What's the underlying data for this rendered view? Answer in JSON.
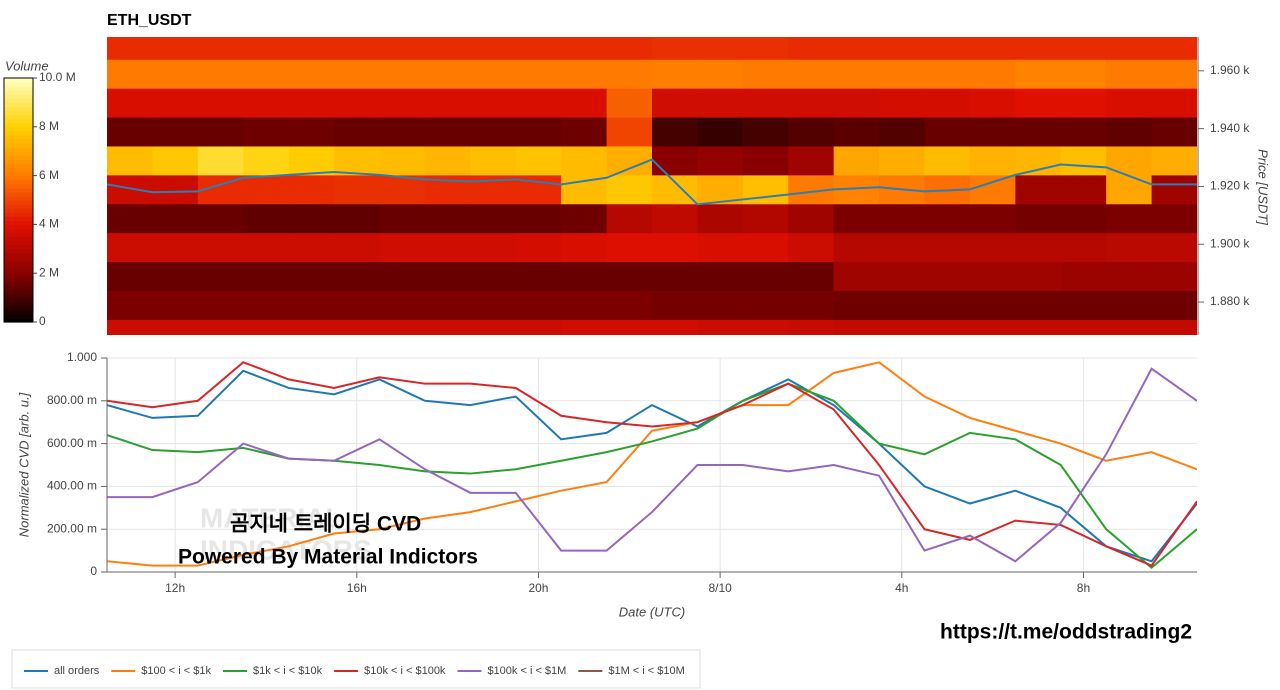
{
  "chart_data": [
    {
      "type": "heatmap",
      "title": "ETH_USDT",
      "ylabel": "Price [USDT]",
      "x_edges": [
        10.5,
        11.5,
        12.5,
        13.5,
        14.5,
        15.5,
        16.5,
        17.5,
        18.5,
        19.5,
        20.5,
        21.5,
        22.5,
        23.5,
        24.5,
        25.5,
        26.5,
        27.5,
        28.5,
        29.5,
        30.5,
        31.5,
        32.5,
        33.5,
        34.5
      ],
      "y_edges": [
        1864,
        1874,
        1884,
        1894,
        1904,
        1914,
        1924,
        1934,
        1944,
        1954,
        1964,
        1974
      ],
      "xlim": [
        10.5,
        34.5
      ],
      "ylim": [
        1868.6,
        1971.7
      ],
      "yticks": [
        {
          "value": 1880,
          "label": "1.880 k"
        },
        {
          "value": 1900,
          "label": "1.900 k"
        },
        {
          "value": 1920,
          "label": "1.920 k"
        },
        {
          "value": 1940,
          "label": "1.940 k"
        },
        {
          "value": 1960,
          "label": "1.960 k"
        }
      ],
      "z": [
        [
          3.5,
          3.5,
          3.5,
          3.5,
          3.5,
          3.5,
          3.5,
          3.5,
          3.5,
          3.5,
          3.6,
          3.6,
          3.6,
          3.5,
          3.5,
          3.4,
          3.3,
          3.3,
          3.3,
          3.3,
          3.3,
          3.3,
          3.3,
          3.3
        ],
        [
          1.8,
          1.8,
          1.8,
          1.8,
          1.8,
          1.8,
          1.8,
          1.8,
          1.8,
          1.8,
          1.8,
          1.8,
          1.7,
          1.7,
          1.7,
          1.7,
          1.6,
          1.6,
          1.6,
          1.6,
          1.6,
          1.6,
          1.6,
          1.6
        ],
        [
          1.5,
          1.5,
          1.5,
          1.5,
          1.5,
          1.5,
          1.5,
          1.5,
          1.5,
          1.5,
          1.5,
          1.5,
          1.5,
          1.5,
          1.5,
          1.5,
          2.5,
          2.5,
          2.5,
          2.5,
          2.5,
          2.4,
          2.4,
          2.4
        ],
        [
          3.5,
          3.5,
          3.5,
          3.5,
          3.5,
          3.5,
          3.6,
          3.6,
          3.6,
          3.7,
          3.8,
          3.9,
          3.9,
          3.8,
          3.8,
          3.5,
          3.0,
          3.0,
          3.0,
          3.0,
          3.0,
          3.0,
          3.1,
          3.1
        ],
        [
          1.5,
          1.5,
          1.5,
          1.4,
          1.4,
          1.4,
          1.5,
          1.5,
          1.5,
          1.5,
          1.6,
          3.0,
          3.2,
          2.8,
          2.9,
          2.5,
          1.8,
          1.8,
          1.8,
          1.8,
          1.7,
          1.7,
          1.8,
          1.8
        ],
        [
          3.5,
          3.5,
          4.5,
          4.5,
          4.5,
          4.6,
          4.6,
          4.5,
          4.5,
          4.5,
          7.5,
          7.8,
          7.5,
          7.2,
          7.6,
          6.0,
          6.2,
          6.0,
          5.8,
          6.0,
          2.5,
          2.5,
          7.0,
          2.5
        ],
        [
          7.5,
          7.8,
          8.5,
          8.2,
          7.9,
          7.6,
          7.5,
          7.4,
          7.6,
          7.7,
          7.5,
          7.2,
          2.0,
          2.2,
          2.0,
          2.5,
          7.0,
          7.2,
          7.5,
          7.3,
          7.4,
          7.6,
          7.0,
          7.2
        ],
        [
          1.5,
          1.5,
          1.5,
          1.6,
          1.6,
          1.5,
          1.5,
          1.5,
          1.5,
          1.5,
          1.6,
          5.0,
          1.0,
          0.8,
          1.0,
          1.2,
          1.3,
          1.2,
          1.5,
          1.5,
          1.5,
          1.5,
          1.4,
          1.5
        ],
        [
          3.8,
          3.8,
          3.8,
          3.8,
          3.8,
          3.8,
          3.8,
          3.8,
          3.8,
          3.8,
          3.8,
          5.5,
          3.6,
          3.6,
          3.6,
          3.6,
          3.6,
          3.7,
          3.7,
          3.8,
          4.0,
          4.0,
          3.8,
          3.8
        ],
        [
          6.0,
          6.0,
          6.0,
          6.0,
          6.0,
          6.0,
          6.0,
          6.0,
          6.0,
          6.0,
          6.0,
          6.0,
          6.1,
          6.1,
          6.0,
          6.0,
          6.0,
          6.0,
          6.0,
          6.0,
          6.2,
          6.2,
          6.0,
          6.0
        ],
        [
          4.5,
          4.5,
          4.5,
          4.5,
          4.5,
          4.5,
          4.5,
          4.5,
          4.5,
          4.5,
          4.5,
          4.5,
          4.6,
          4.6,
          4.6,
          4.5,
          4.5,
          4.5,
          4.5,
          4.5,
          4.5,
          4.5,
          4.5,
          4.5
        ]
      ],
      "colormap": [
        "#000000",
        "#8a0000",
        "#e01000",
        "#ff7a00",
        "#ffd000",
        "#ffffc0"
      ],
      "colorbar": {
        "label": "Volume",
        "lim": [
          0,
          10
        ],
        "ticks": [
          0,
          {
            "value": 2,
            "label": "2 M"
          },
          {
            "value": 4,
            "label": "4 M"
          },
          {
            "value": 6,
            "label": "6 M"
          },
          {
            "value": 8,
            "label": "8 M"
          },
          {
            "value": 10,
            "label": "10.0 M"
          }
        ]
      },
      "price_line": {
        "color": "#2e7db5",
        "x": [
          10.5,
          11.5,
          12.5,
          13.5,
          14.5,
          15.5,
          16.5,
          17.5,
          18.5,
          19.5,
          20.5,
          21.5,
          22.5,
          23.5,
          24.5,
          25.5,
          26.5,
          27.5,
          28.5,
          29.5,
          30.5,
          31.5,
          32.5,
          33.5,
          34.5
        ],
        "values": [
          1920.7,
          1918,
          1918.3,
          1923,
          1924,
          1925,
          1924,
          1922.4,
          1921.7,
          1922.4,
          1920.7,
          1923,
          1929.3,
          1913.8,
          1915.5,
          1917.2,
          1919,
          1919.7,
          1918.3,
          1919,
          1924,
          1927.6,
          1926.6,
          1920.7,
          1920.7
        ]
      }
    },
    {
      "type": "line",
      "xlabel": "Date (UTC)",
      "ylabel": "Normalized CVD [arb. u.]",
      "x": [
        10.5,
        11.5,
        12.5,
        13.5,
        14.5,
        15.5,
        16.5,
        17.5,
        18.5,
        19.5,
        20.5,
        21.5,
        22.5,
        23.5,
        24.5,
        25.5,
        26.5,
        27.5,
        28.5,
        29.5,
        30.5,
        31.5,
        32.5,
        33.5,
        34.5
      ],
      "xlim": [
        10.5,
        34.5
      ],
      "ylim": [
        0,
        1
      ],
      "xticks": [
        {
          "value": 12,
          "label": "12h"
        },
        {
          "value": 16,
          "label": "16h"
        },
        {
          "value": 20,
          "label": "20h"
        },
        {
          "value": 24,
          "label": "8/10"
        },
        {
          "value": 28,
          "label": "4h"
        },
        {
          "value": 32,
          "label": "8h"
        }
      ],
      "yticks": [
        0,
        {
          "value": 0.2,
          "label": "200.00 m"
        },
        {
          "value": 0.4,
          "label": "400.00 m"
        },
        {
          "value": 0.6,
          "label": "600.00 m"
        },
        {
          "value": 0.8,
          "label": "800.00 m"
        },
        {
          "value": 1,
          "label": "1.000"
        }
      ],
      "grid": true,
      "legend": "bottom-left",
      "series": [
        {
          "name": "all orders",
          "color": "#1f77b4",
          "values": [
            0.78,
            0.72,
            0.73,
            0.94,
            0.86,
            0.83,
            0.9,
            0.8,
            0.78,
            0.82,
            0.62,
            0.65,
            0.78,
            0.68,
            0.8,
            0.9,
            0.78,
            0.6,
            0.4,
            0.32,
            0.38,
            0.3,
            0.12,
            0.05,
            0.32
          ]
        },
        {
          "name": "$100 < i < $1k",
          "color": "#ff7f0e",
          "values": [
            0.05,
            0.03,
            0.03,
            0.08,
            0.12,
            0.18,
            0.2,
            0.25,
            0.28,
            0.33,
            0.38,
            0.42,
            0.66,
            0.7,
            0.78,
            0.78,
            0.93,
            0.98,
            0.82,
            0.72,
            0.66,
            0.6,
            0.52,
            0.56,
            0.48
          ]
        },
        {
          "name": "$1k < i < $10k",
          "color": "#2ca02c",
          "values": [
            0.64,
            0.57,
            0.56,
            0.58,
            0.53,
            0.52,
            0.5,
            0.47,
            0.46,
            0.48,
            0.52,
            0.56,
            0.61,
            0.67,
            0.8,
            0.88,
            0.8,
            0.6,
            0.55,
            0.65,
            0.62,
            0.5,
            0.2,
            0.02,
            0.2
          ]
        },
        {
          "name": "$10k < i < $100k",
          "color": "#d62728",
          "values": [
            0.8,
            0.77,
            0.8,
            0.98,
            0.9,
            0.86,
            0.91,
            0.88,
            0.88,
            0.86,
            0.73,
            0.7,
            0.68,
            0.7,
            0.78,
            0.88,
            0.76,
            0.5,
            0.2,
            0.15,
            0.24,
            0.22,
            0.12,
            0.03,
            0.33
          ]
        },
        {
          "name": "$100k < i < $1M",
          "color": "#9467bd",
          "values": [
            0.35,
            0.35,
            0.42,
            0.6,
            0.53,
            0.52,
            0.62,
            0.48,
            0.37,
            0.37,
            0.1,
            0.1,
            0.28,
            0.5,
            0.5,
            0.47,
            0.5,
            0.45,
            0.1,
            0.17,
            0.05,
            0.23,
            0.55,
            0.95,
            0.8
          ]
        },
        {
          "name": "$1M < i < $10M",
          "color": "#8c564b",
          "values": [
            null,
            null,
            null,
            null,
            null,
            null,
            null,
            null,
            null,
            null,
            null,
            null,
            null,
            null,
            null,
            null,
            null,
            null,
            null,
            null,
            null,
            null,
            null,
            null,
            null
          ]
        }
      ]
    }
  ],
  "overlay": {
    "watermark_1": "MATERIAL",
    "watermark_2": "INDICATORS",
    "caption_1": "곰지네 트레이딩 CVD",
    "caption_2": "Powered By Material Indictors",
    "link": "https://t.me/oddstrading2"
  }
}
